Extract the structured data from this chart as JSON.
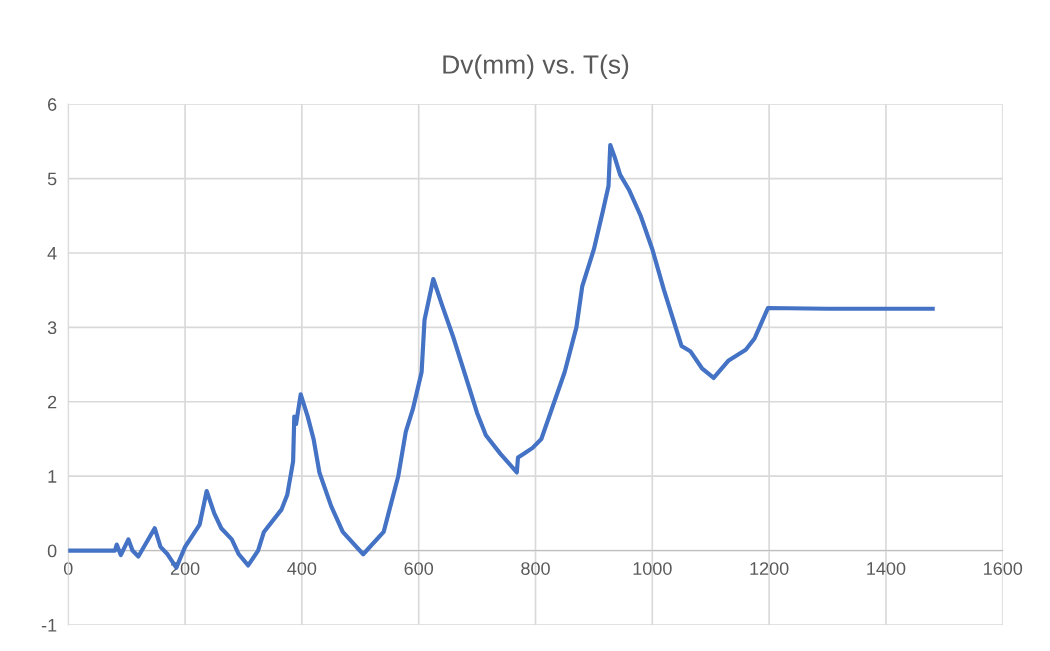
{
  "chart_data": {
    "type": "line",
    "title": "Dv(mm) vs. T(s)",
    "series": [
      {
        "color": "#4472c4",
        "x": [
          0,
          80,
          83,
          90,
          103,
          110,
          120,
          148,
          158,
          170,
          185,
          200,
          225,
          237,
          250,
          262,
          280,
          292,
          308,
          325,
          335,
          365,
          375,
          385,
          387,
          390,
          398,
          410,
          420,
          430,
          450,
          470,
          505,
          540,
          550,
          565,
          578,
          590,
          605,
          610,
          625,
          640,
          660,
          680,
          700,
          715,
          740,
          768,
          770,
          780,
          795,
          810,
          830,
          850,
          870,
          880,
          900,
          915,
          925,
          928,
          935,
          945,
          960,
          980,
          1000,
          1020,
          1040,
          1050,
          1065,
          1085,
          1105,
          1130,
          1160,
          1175,
          1198,
          1300,
          1480
        ],
        "values": [
          0,
          0,
          0.08,
          -0.06,
          0.15,
          0,
          -0.08,
          0.3,
          0.05,
          -0.05,
          -0.23,
          0.05,
          0.35,
          0.8,
          0.5,
          0.3,
          0.15,
          -0.05,
          -0.2,
          0,
          0.25,
          0.55,
          0.75,
          1.2,
          1.8,
          1.7,
          2.1,
          1.8,
          1.5,
          1.05,
          0.6,
          0.25,
          -0.05,
          0.25,
          0.55,
          1.0,
          1.6,
          1.9,
          2.4,
          3.1,
          3.65,
          3.3,
          2.85,
          2.35,
          1.85,
          1.55,
          1.3,
          1.05,
          1.25,
          1.3,
          1.38,
          1.5,
          1.95,
          2.4,
          3.0,
          3.55,
          4.05,
          4.55,
          4.9,
          5.45,
          5.3,
          5.05,
          4.85,
          4.5,
          4.05,
          3.5,
          3.0,
          2.75,
          2.68,
          2.45,
          2.32,
          2.55,
          2.7,
          2.85,
          3.26,
          3.25,
          3.25
        ]
      }
    ],
    "xlim": [
      0,
      1600
    ],
    "xticks": [
      0,
      200,
      400,
      600,
      800,
      1000,
      1200,
      1400,
      1600
    ],
    "ylim": [
      -1,
      6
    ],
    "yticks": [
      -1,
      0,
      1,
      2,
      3,
      4,
      5,
      6
    ],
    "grid": true,
    "marker": "none",
    "line_style": "solid"
  }
}
